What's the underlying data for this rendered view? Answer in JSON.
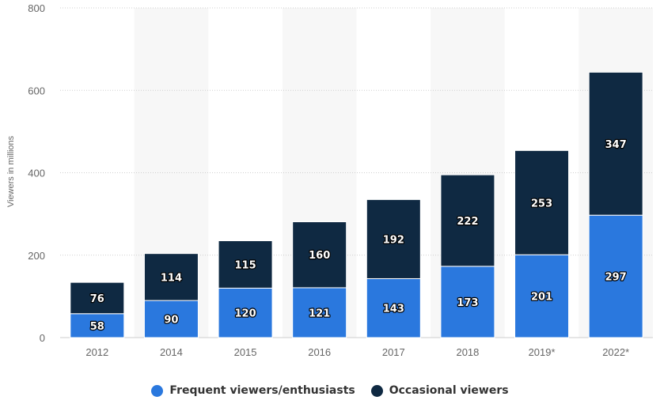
{
  "chart_data": {
    "type": "bar",
    "stacked": true,
    "categories": [
      "2012",
      "2014",
      "2015",
      "2016",
      "2017",
      "2018",
      "2019*",
      "2022*"
    ],
    "series": [
      {
        "name": "Frequent viewers/enthusiasts",
        "color": "#2a78de",
        "values": [
          58,
          90,
          120,
          121,
          143,
          173,
          201,
          297
        ]
      },
      {
        "name": "Occasional viewers",
        "color": "#0f2942",
        "values": [
          76,
          114,
          115,
          160,
          192,
          222,
          253,
          347
        ]
      }
    ],
    "ylabel": "Viewers in millions",
    "ylim": [
      0,
      800
    ],
    "yticks": [
      0,
      200,
      400,
      600,
      800
    ],
    "grid": true,
    "legend_position": "bottom-center"
  }
}
